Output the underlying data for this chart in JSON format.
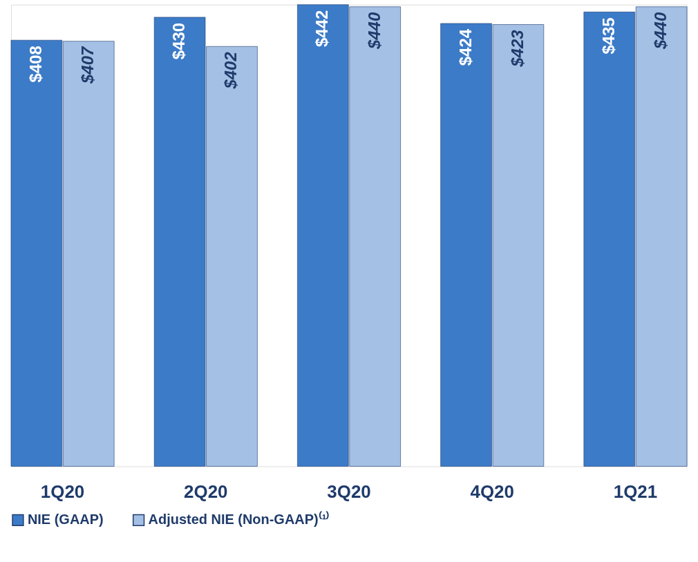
{
  "chart_data": {
    "type": "bar",
    "categories": [
      "1Q20",
      "2Q20",
      "3Q20",
      "4Q20",
      "1Q21"
    ],
    "series": [
      {
        "name": "NIE (GAAP)",
        "color": "#3c7bc8",
        "values": [
          408,
          430,
          442,
          424,
          435
        ],
        "value_labels": [
          "$408",
          "$430",
          "$442",
          "$424",
          "$435"
        ]
      },
      {
        "name": "Adjusted NIE (Non-GAAP)⁽¹⁾",
        "color": "#a4c0e4",
        "values": [
          407,
          402,
          440,
          423,
          440
        ],
        "value_labels": [
          "$407",
          "$402",
          "$440",
          "$423",
          "$440"
        ]
      }
    ],
    "legend": "bottom",
    "grid": false
  }
}
